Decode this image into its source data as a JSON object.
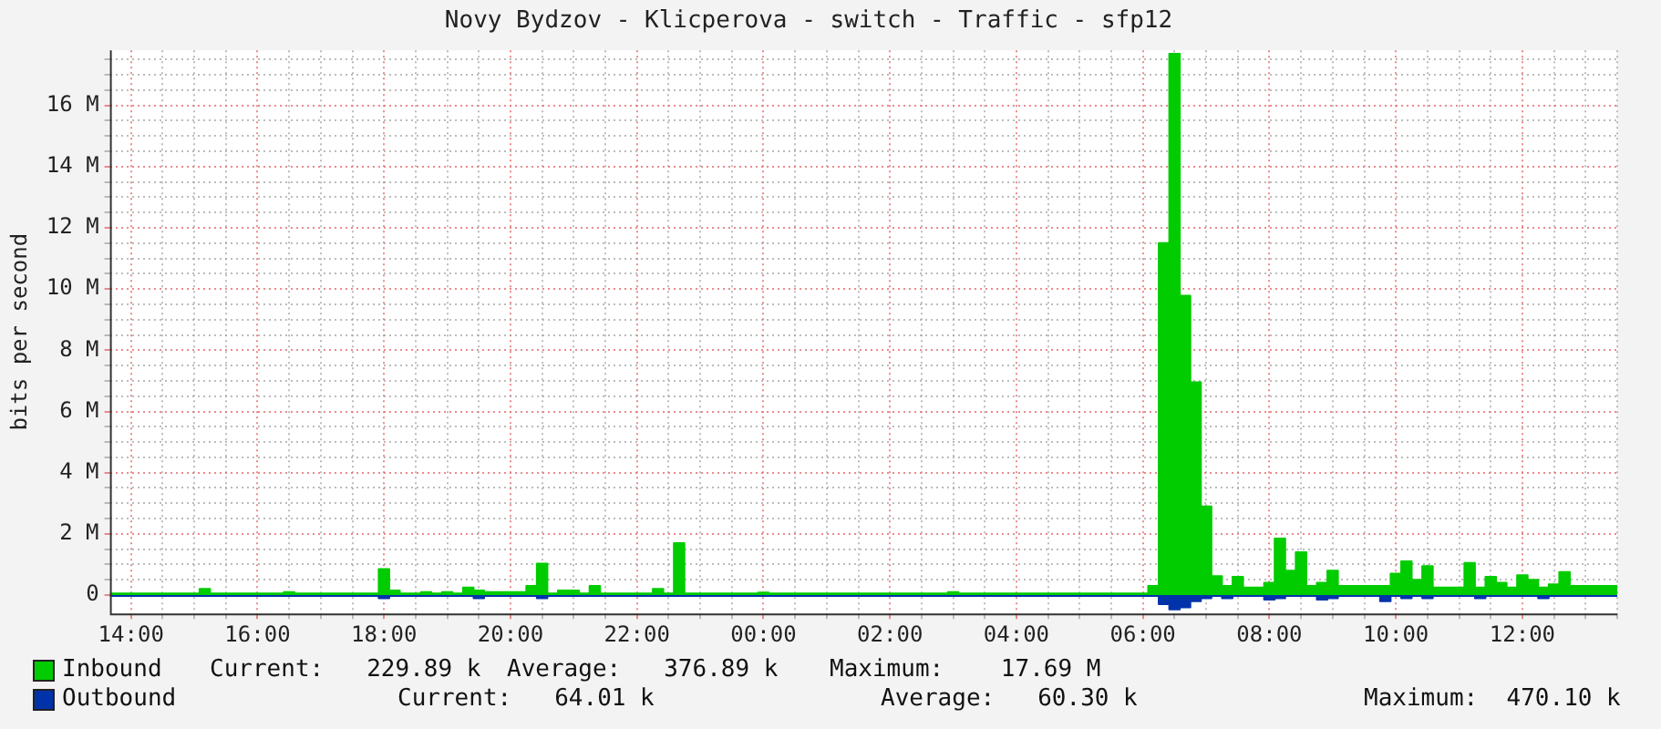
{
  "chart_data": {
    "type": "area",
    "title": "Novy Bydzov - Klicperova - switch - Traffic - sfp12",
    "ylabel": "bits per second",
    "categories": [
      null,
      null,
      "14:00",
      null,
      null,
      null,
      null,
      null,
      null,
      null,
      null,
      null,
      null,
      null,
      "16:00",
      null,
      null,
      null,
      null,
      null,
      null,
      null,
      null,
      null,
      null,
      null,
      "18:00",
      null,
      null,
      null,
      null,
      null,
      null,
      null,
      null,
      null,
      null,
      null,
      "20:00",
      null,
      null,
      null,
      null,
      null,
      null,
      null,
      null,
      null,
      null,
      null,
      "22:00",
      null,
      null,
      null,
      null,
      null,
      null,
      null,
      null,
      null,
      null,
      null,
      "00:00",
      null,
      null,
      null,
      null,
      null,
      null,
      null,
      null,
      null,
      null,
      null,
      "02:00",
      null,
      null,
      null,
      null,
      null,
      null,
      null,
      null,
      null,
      null,
      null,
      "04:00",
      null,
      null,
      null,
      null,
      null,
      null,
      null,
      null,
      null,
      null,
      null,
      "06:00",
      null,
      null,
      null,
      null,
      null,
      null,
      null,
      null,
      null,
      null,
      null,
      "08:00",
      null,
      null,
      null,
      null,
      null,
      null,
      null,
      null,
      null,
      null,
      null,
      "10:00",
      null,
      null,
      null,
      null,
      null,
      null,
      null,
      null,
      null,
      null,
      null,
      "12:00",
      null,
      null,
      null,
      null,
      null,
      null,
      null,
      null,
      null
    ],
    "ylim": [
      -0.6,
      17.8
    ],
    "yticks": [
      0,
      {
        "value": 0.5,
        "label": null
      },
      {
        "value": 1,
        "label": null
      },
      {
        "value": 1.5,
        "label": null
      },
      {
        "value": 2,
        "label": "2 M"
      },
      {
        "value": 2.5,
        "label": null
      },
      {
        "value": 3,
        "label": null
      },
      {
        "value": 3.5,
        "label": null
      },
      {
        "value": 4,
        "label": "4 M"
      },
      {
        "value": 4.5,
        "label": null
      },
      {
        "value": 5,
        "label": null
      },
      {
        "value": 5.5,
        "label": null
      },
      {
        "value": 6,
        "label": "6 M"
      },
      {
        "value": 6.5,
        "label": null
      },
      {
        "value": 7,
        "label": null
      },
      {
        "value": 7.5,
        "label": null
      },
      {
        "value": 8,
        "label": "8 M"
      },
      {
        "value": 8.5,
        "label": null
      },
      {
        "value": 9,
        "label": null
      },
      {
        "value": 9.5,
        "label": null
      },
      {
        "value": 10,
        "label": "10 M"
      },
      {
        "value": 10.5,
        "label": null
      },
      {
        "value": 11,
        "label": null
      },
      {
        "value": 11.5,
        "label": null
      },
      {
        "value": 12,
        "label": "12 M"
      },
      {
        "value": 12.5,
        "label": null
      },
      {
        "value": 13,
        "label": null
      },
      {
        "value": 13.5,
        "label": null
      },
      {
        "value": 14,
        "label": "14 M"
      },
      {
        "value": 14.5,
        "label": null
      },
      {
        "value": 15,
        "label": null
      },
      {
        "value": 15.5,
        "label": null
      },
      {
        "value": 16,
        "label": "16 M"
      },
      {
        "value": 16.5,
        "label": null
      },
      {
        "value": 17,
        "label": null
      },
      {
        "value": 17.5,
        "label": null
      }
    ],
    "grid": true,
    "legend": "bottom",
    "series": [
      {
        "name": "Inbound",
        "color": "#00cc00",
        "values": [
          0.05,
          0.05,
          0.05,
          0.05,
          0.05,
          0.05,
          0.05,
          0.05,
          0.05,
          0.2,
          0.05,
          0.05,
          0.05,
          0.05,
          0.05,
          0.05,
          0.05,
          0.1,
          0.05,
          0.05,
          0.05,
          0.05,
          0.05,
          0.05,
          0.05,
          0.05,
          0.85,
          0.15,
          0.05,
          0.05,
          0.1,
          0.05,
          0.1,
          0.05,
          0.25,
          0.15,
          0.1,
          0.1,
          0.1,
          0.1,
          0.3,
          1.03,
          0.05,
          0.15,
          0.15,
          0.05,
          0.3,
          0.05,
          0.05,
          0.05,
          0.05,
          0.05,
          0.2,
          0.05,
          1.7,
          0.05,
          0.05,
          0.05,
          0.05,
          0.05,
          0.05,
          0.05,
          0.08,
          0.05,
          0.05,
          0.05,
          0.05,
          0.05,
          0.05,
          0.05,
          0.05,
          0.05,
          0.05,
          0.05,
          0.05,
          0.05,
          0.05,
          0.05,
          0.05,
          0.05,
          0.1,
          0.05,
          0.05,
          0.05,
          0.05,
          0.05,
          0.05,
          0.05,
          0.05,
          0.05,
          0.05,
          0.05,
          0.05,
          0.05,
          0.05,
          0.05,
          0.05,
          0.05,
          0.05,
          0.3,
          11.5,
          17.69,
          9.78,
          6.95,
          2.9,
          0.62,
          0.3,
          0.6,
          0.25,
          0.25,
          0.4,
          1.85,
          0.8,
          1.4,
          0.3,
          0.4,
          0.8,
          0.3,
          0.3,
          0.3,
          0.3,
          0.3,
          0.7,
          1.1,
          0.5,
          0.95,
          0.25,
          0.25,
          0.25,
          1.05,
          0.25,
          0.6,
          0.4,
          0.25,
          0.65,
          0.5,
          0.25,
          0.35,
          0.75,
          0.3,
          0.3,
          0.3,
          0.3,
          0.3
        ]
      },
      {
        "name": "Outbound",
        "color": "#0033aa",
        "values": [
          -0.03,
          -0.03,
          -0.03,
          -0.03,
          -0.03,
          -0.03,
          -0.03,
          -0.03,
          -0.03,
          -0.03,
          -0.03,
          -0.03,
          -0.03,
          -0.03,
          -0.03,
          -0.03,
          -0.03,
          -0.03,
          -0.03,
          -0.03,
          -0.03,
          -0.03,
          -0.03,
          -0.03,
          -0.03,
          -0.03,
          -0.1,
          -0.03,
          -0.03,
          -0.03,
          -0.03,
          -0.03,
          -0.03,
          -0.03,
          -0.03,
          -0.1,
          -0.03,
          -0.03,
          -0.03,
          -0.03,
          -0.03,
          -0.1,
          -0.03,
          -0.03,
          -0.03,
          -0.03,
          -0.03,
          -0.03,
          -0.03,
          -0.03,
          -0.03,
          -0.03,
          -0.03,
          -0.03,
          -0.03,
          -0.03,
          -0.03,
          -0.03,
          -0.03,
          -0.03,
          -0.03,
          -0.03,
          -0.03,
          -0.03,
          -0.03,
          -0.03,
          -0.03,
          -0.03,
          -0.03,
          -0.03,
          -0.03,
          -0.03,
          -0.03,
          -0.03,
          -0.03,
          -0.03,
          -0.03,
          -0.03,
          -0.03,
          -0.03,
          -0.03,
          -0.03,
          -0.03,
          -0.03,
          -0.03,
          -0.03,
          -0.03,
          -0.03,
          -0.03,
          -0.03,
          -0.03,
          -0.03,
          -0.03,
          -0.03,
          -0.03,
          -0.03,
          -0.03,
          -0.03,
          -0.03,
          -0.03,
          -0.3,
          -0.47,
          -0.4,
          -0.2,
          -0.1,
          -0.03,
          -0.1,
          -0.03,
          -0.03,
          -0.03,
          -0.15,
          -0.1,
          -0.03,
          -0.03,
          -0.03,
          -0.15,
          -0.1,
          -0.03,
          -0.03,
          -0.03,
          -0.03,
          -0.2,
          -0.03,
          -0.1,
          -0.03,
          -0.1,
          -0.03,
          -0.03,
          -0.03,
          -0.03,
          -0.1,
          -0.03,
          -0.03,
          -0.03,
          -0.03,
          -0.03,
          -0.1,
          -0.03,
          -0.03,
          -0.03,
          -0.03,
          -0.03,
          -0.03,
          -0.03
        ]
      }
    ],
    "annotations": [
      "Current:   229.89 k",
      "Average:   376.89 k",
      "Maximum:    17.69 M",
      "Current:   64.01 k",
      "Average:   60.30 k",
      "Maximum:  470.10 k"
    ]
  }
}
